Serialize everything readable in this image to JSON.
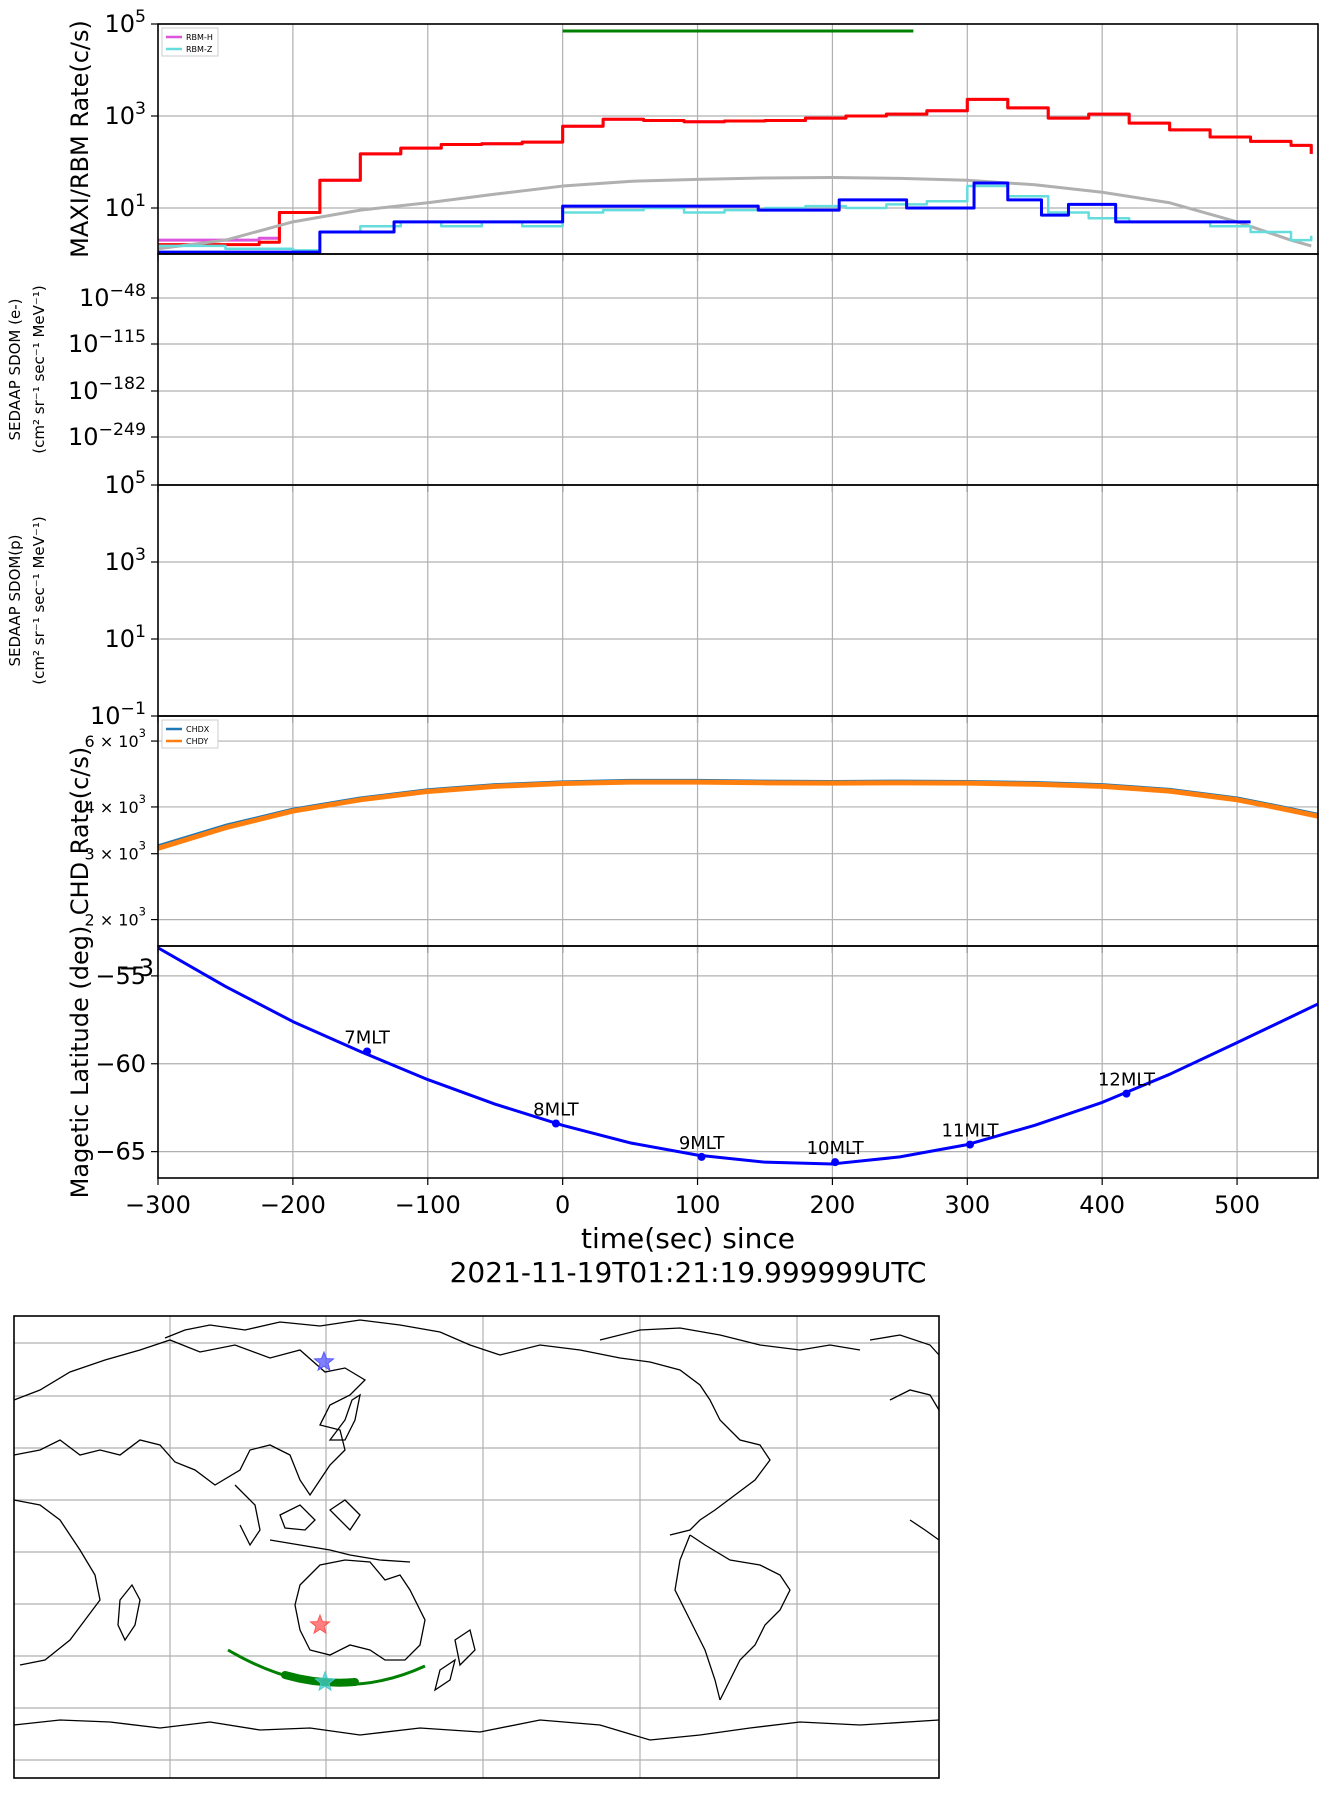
{
  "chart_data": [
    {
      "panel": 1,
      "type": "line",
      "ylabel": "MAXI/RBM Rate(c/s)",
      "yscale": "log",
      "ylim": [
        1,
        100000
      ],
      "yticks": [
        "10^5",
        "10^3",
        "10^1"
      ],
      "xlim": [
        -300,
        560
      ],
      "grid": true,
      "legend": {
        "placement": "top-left",
        "entries": [
          "RBM-H",
          "RBM-Z"
        ]
      },
      "top_marker": {
        "x": [
          0,
          260
        ],
        "y": 100000,
        "color": "#008000"
      },
      "series": [
        {
          "name": "RBM-H",
          "color": "#dd55dd",
          "x": [
            -300,
            -225,
            -210,
            -180,
            -150,
            -120,
            -90,
            -60,
            -30,
            0,
            30,
            60,
            90,
            120,
            150,
            180,
            210,
            240,
            270,
            300,
            330,
            360,
            390,
            420,
            450,
            480,
            510,
            540,
            555
          ],
          "y": [
            2,
            2.2,
            8,
            40,
            150,
            200,
            240,
            250,
            270,
            600,
            850,
            800,
            750,
            780,
            800,
            900,
            1000,
            1100,
            1300,
            2300,
            1500,
            900,
            1100,
            700,
            500,
            350,
            280,
            230,
            150
          ]
        },
        {
          "name": "",
          "color": "#ff0000",
          "x": [
            -300,
            -225,
            -210,
            -180,
            -150,
            -120,
            -90,
            -60,
            -30,
            0,
            30,
            60,
            90,
            120,
            150,
            180,
            210,
            240,
            270,
            300,
            330,
            360,
            390,
            420,
            450,
            480,
            510,
            540,
            555
          ],
          "y": [
            1.6,
            1.8,
            8,
            40,
            150,
            200,
            240,
            250,
            270,
            600,
            850,
            800,
            750,
            780,
            800,
            900,
            1000,
            1100,
            1300,
            2300,
            1500,
            900,
            1100,
            700,
            500,
            350,
            280,
            230,
            150
          ]
        },
        {
          "name": "",
          "color": "#b0b0b0",
          "x": [
            -300,
            -250,
            -200,
            -150,
            -100,
            -50,
            0,
            50,
            100,
            150,
            200,
            250,
            300,
            350,
            400,
            450,
            500,
            540,
            555
          ],
          "y": [
            1.3,
            2,
            5,
            9,
            13,
            20,
            30,
            38,
            42,
            45,
            46,
            44,
            40,
            32,
            22,
            13,
            5,
            2,
            1.5
          ]
        },
        {
          "name": "RBM-Z",
          "color": "#66dddd",
          "x": [
            -300,
            -250,
            -200,
            -180,
            -150,
            -120,
            -90,
            -60,
            -30,
            0,
            30,
            60,
            90,
            120,
            150,
            180,
            210,
            240,
            270,
            300,
            330,
            360,
            390,
            420,
            450,
            480,
            510,
            540,
            555
          ],
          "y": [
            1.5,
            1.3,
            1.2,
            3,
            4,
            5,
            4,
            5,
            4,
            8,
            9,
            10,
            8,
            9,
            10,
            11,
            10,
            12,
            14,
            30,
            18,
            8,
            6,
            5,
            5,
            4,
            3,
            2,
            2.5
          ]
        },
        {
          "name": "",
          "color": "#0000ff",
          "x": [
            -300,
            -180,
            -180,
            -125,
            -125,
            0,
            0,
            145,
            145,
            205,
            205,
            255,
            255,
            305,
            305,
            330,
            330,
            355,
            355,
            375,
            375,
            410,
            410,
            510
          ],
          "y": [
            1.1,
            1.1,
            3,
            3,
            5,
            5,
            11,
            11,
            9,
            9,
            15,
            15,
            10,
            10,
            35,
            35,
            15,
            15,
            7,
            7,
            12,
            12,
            5,
            5
          ]
        }
      ]
    },
    {
      "panel": 2,
      "type": "line",
      "ylabel": "SEDAAP SDOM (e-)",
      "ylabel_units": "(cm² sr⁻¹ sec⁻¹ MeV⁻¹)",
      "yscale": "log",
      "yticks": [
        "10^-48",
        "10^-115",
        "10^-182",
        "10^-249"
      ],
      "xlim": [
        -300,
        560
      ],
      "grid": true,
      "series": []
    },
    {
      "panel": 3,
      "type": "line",
      "ylabel": "SEDAAP SDOM(p)",
      "ylabel_units": "(cm² sr⁻¹ sec⁻¹ MeV⁻¹)",
      "yscale": "log",
      "ylim": [
        0.1,
        100000
      ],
      "yticks": [
        "10^5",
        "10^3",
        "10^1",
        "10^-1"
      ],
      "xlim": [
        -300,
        560
      ],
      "grid": true,
      "series": []
    },
    {
      "panel": 4,
      "type": "line",
      "ylabel": "CHD Rate(c/s)",
      "yscale": "log",
      "ylim": [
        1700,
        7000
      ],
      "yticks": [
        "6 × 10^3",
        "4 × 10^3",
        "3 × 10^3",
        "2 × 10^3"
      ],
      "xlim": [
        -300,
        560
      ],
      "grid": true,
      "legend": {
        "placement": "top-left",
        "entries": [
          "CHDX",
          "CHDY"
        ]
      },
      "series": [
        {
          "name": "CHDX",
          "color": "#1f77b4",
          "x": [
            -300,
            -250,
            -200,
            -150,
            -100,
            -50,
            0,
            50,
            100,
            150,
            200,
            250,
            300,
            350,
            400,
            450,
            500,
            530,
            560
          ],
          "y": [
            3130,
            3550,
            3920,
            4200,
            4420,
            4560,
            4640,
            4680,
            4680,
            4660,
            4650,
            4660,
            4650,
            4620,
            4560,
            4430,
            4200,
            4000,
            3800
          ]
        },
        {
          "name": "CHDY",
          "color": "#ff7f0e",
          "x": [
            -300,
            -250,
            -200,
            -150,
            -100,
            -50,
            0,
            50,
            100,
            150,
            200,
            250,
            300,
            350,
            400,
            450,
            500,
            530,
            560
          ],
          "y": [
            3100,
            3520,
            3900,
            4180,
            4400,
            4540,
            4620,
            4660,
            4660,
            4640,
            4630,
            4640,
            4630,
            4600,
            4540,
            4410,
            4180,
            3980,
            3780
          ]
        }
      ]
    },
    {
      "panel": 5,
      "type": "line",
      "ylabel": "Magetic Latitude  (deg)",
      "ylim": [
        -66.5,
        -53.3
      ],
      "yticks": [
        -55,
        -60,
        -65
      ],
      "xlim": [
        -300,
        560
      ],
      "xticks": [
        -300,
        -200,
        -100,
        0,
        100,
        200,
        300,
        400,
        500
      ],
      "xlabel": "time(sec) since",
      "xlabel2": "2021-11-19T01:21:19.999999UTC",
      "grid": true,
      "series": [
        {
          "name": "",
          "color": "#0000ff",
          "x": [
            -300,
            -250,
            -200,
            -150,
            -100,
            -50,
            0,
            50,
            100,
            150,
            200,
            250,
            300,
            350,
            400,
            450,
            500,
            560
          ],
          "y": [
            -53.4,
            -55.6,
            -57.6,
            -59.3,
            -60.9,
            -62.3,
            -63.5,
            -64.5,
            -65.2,
            -65.6,
            -65.7,
            -65.3,
            -64.6,
            -63.5,
            -62.2,
            -60.6,
            -58.8,
            -56.6
          ]
        }
      ],
      "annotations": [
        {
          "x": -145,
          "y": -59.3,
          "label": "7MLT"
        },
        {
          "x": -5,
          "y": -63.4,
          "label": "8MLT"
        },
        {
          "x": 103,
          "y": -65.3,
          "label": "9MLT"
        },
        {
          "x": 202,
          "y": -65.6,
          "label": "10MLT"
        },
        {
          "x": 302,
          "y": -64.6,
          "label": "11MLT"
        },
        {
          "x": 418,
          "y": -61.7,
          "label": "12MLT"
        }
      ],
      "stray_tick_label": "−3"
    }
  ],
  "map": {
    "type": "world-map",
    "grid": true,
    "track_color": "#008000",
    "markers": [
      {
        "name": "blue-star",
        "color": "#5555ff"
      },
      {
        "name": "red-star",
        "color": "#ff5555"
      },
      {
        "name": "cyan-star",
        "color": "#44cccc"
      }
    ]
  }
}
